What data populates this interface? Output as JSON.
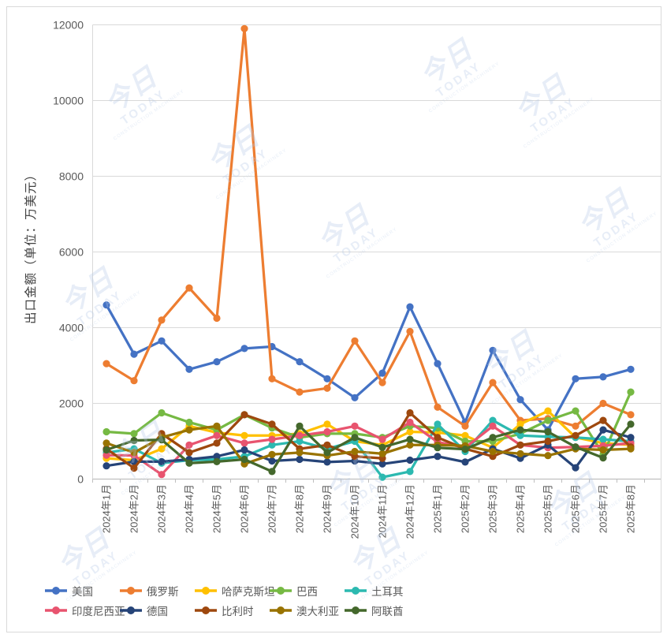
{
  "chart_data": {
    "type": "line",
    "title": "",
    "xlabel": "",
    "ylabel": "出口金额（单位：万美元）",
    "ylim": [
      0,
      12000
    ],
    "y_ticks": [
      0,
      2000,
      4000,
      6000,
      8000,
      10000,
      12000
    ],
    "grid": true,
    "legend_position": "bottom",
    "marker": "circle",
    "categories": [
      "2024年1月",
      "2024年2月",
      "2024年3月",
      "2024年4月",
      "2024年5月",
      "2024年6月",
      "2024年7月",
      "2024年8月",
      "2024年9月",
      "2024年10月",
      "2024年11月",
      "2024年12月",
      "2025年1月",
      "2025年2月",
      "2025年3月",
      "2025年4月",
      "2025年5月",
      "2025年6月",
      "2025年7月",
      "2025年8月"
    ],
    "series": [
      {
        "name": "美国",
        "color": "#4472C4",
        "values": [
          4600,
          3300,
          3650,
          2900,
          3100,
          3450,
          3500,
          3100,
          2650,
          2150,
          2800,
          4550,
          3050,
          1500,
          3400,
          2100,
          1300,
          2650,
          2700,
          2900
        ]
      },
      {
        "name": "俄罗斯",
        "color": "#ED7D31",
        "values": [
          3050,
          2600,
          4200,
          5050,
          4250,
          11900,
          2650,
          2300,
          2400,
          3650,
          2550,
          3900,
          1900,
          1400,
          2550,
          1550,
          1600,
          1400,
          2000,
          1700
        ]
      },
      {
        "name": "哈萨克斯坦",
        "color": "#FFC000",
        "values": [
          550,
          500,
          800,
          1400,
          1230,
          1150,
          1150,
          1200,
          1450,
          1000,
          900,
          1250,
          1230,
          1150,
          830,
          1450,
          1800,
          1100,
          950,
          900
        ]
      },
      {
        "name": "巴西",
        "color": "#76B943",
        "values": [
          1250,
          1200,
          1750,
          1500,
          1300,
          1700,
          1350,
          1100,
          1200,
          1200,
          1100,
          1400,
          1350,
          1000,
          1000,
          1200,
          1550,
          1800,
          650,
          2300
        ]
      },
      {
        "name": "土耳其",
        "color": "#2CB9B0",
        "values": [
          700,
          800,
          420,
          500,
          520,
          600,
          900,
          1000,
          800,
          1000,
          50,
          200,
          1450,
          730,
          1550,
          1150,
          1120,
          1100,
          1050,
          1000
        ]
      },
      {
        "name": "印度尼西亚",
        "color": "#E8546F",
        "values": [
          630,
          625,
          120,
          900,
          1150,
          950,
          1050,
          1150,
          1250,
          1400,
          1050,
          1500,
          980,
          830,
          1400,
          900,
          830,
          850,
          880,
          950
        ]
      },
      {
        "name": "德国",
        "color": "#264478",
        "values": [
          350,
          460,
          460,
          520,
          600,
          770,
          480,
          520,
          450,
          480,
          400,
          500,
          600,
          450,
          800,
          550,
          900,
          300,
          1300,
          1100
        ]
      },
      {
        "name": "比利时",
        "color": "#9E480E",
        "values": [
          800,
          290,
          1200,
          700,
          950,
          1700,
          1450,
          800,
          900,
          600,
          550,
          1750,
          1100,
          800,
          600,
          900,
          1000,
          1150,
          1550,
          850
        ]
      },
      {
        "name": "澳大利亚",
        "color": "#997300",
        "values": [
          950,
          700,
          1100,
          1300,
          1400,
          400,
          650,
          700,
          620,
          730,
          670,
          900,
          900,
          880,
          730,
          670,
          620,
          800,
          770,
          800
        ]
      },
      {
        "name": "阿联酋",
        "color": "#44682C",
        "values": [
          770,
          1020,
          1040,
          420,
          460,
          520,
          200,
          1400,
          700,
          1100,
          840,
          1050,
          830,
          790,
          1100,
          1300,
          1250,
          850,
          560,
          1450
        ]
      }
    ]
  },
  "watermark": {
    "line1": "今日",
    "line2": "TODAY",
    "caption": "CONSTRUCTION MACHINERY"
  },
  "layout_colors": {
    "gridline": "#D9D9D9",
    "axis": "#BFBFBF",
    "tick_label": "#595959",
    "frame_border": "#D9D9D9"
  }
}
